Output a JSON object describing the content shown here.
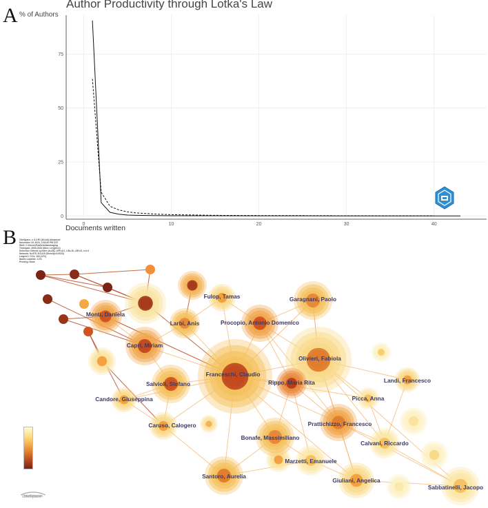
{
  "panel_a_label": "A",
  "panel_b_label": "B",
  "chart_data": {
    "type": "line",
    "title": "Author Productivity through Lotka's Law",
    "ylabel": "% of Authors",
    "xlabel": "Documents written",
    "xlim": [
      -2,
      46
    ],
    "ylim": [
      -1.5,
      93
    ],
    "x_ticks": [
      0,
      10,
      20,
      30,
      40
    ],
    "y_ticks": [
      0,
      25,
      50,
      75
    ],
    "x_tick_labels": [
      "0",
      "10",
      "20",
      "30",
      "40"
    ],
    "y_tick_labels": [
      "0",
      "25",
      "50",
      "75"
    ],
    "series": [
      {
        "name": "observed",
        "style": "solid",
        "x": [
          1,
          2,
          3,
          4,
          5,
          6,
          8,
          10,
          15,
          20,
          25,
          30,
          35,
          40,
          43
        ],
        "values": [
          90.5,
          6.2,
          1.7,
          0.8,
          0.4,
          0.3,
          0.2,
          0.1,
          0.1,
          0.05,
          0.05,
          0.03,
          0.03,
          0.03,
          0.03
        ]
      },
      {
        "name": "theoretical",
        "style": "dashed",
        "x": [
          1,
          2,
          3,
          4,
          5,
          6,
          8,
          10,
          15,
          20,
          25,
          30,
          35,
          40
        ],
        "values": [
          63.5,
          11.0,
          4.5,
          2.8,
          1.9,
          1.4,
          0.9,
          0.6,
          0.3,
          0.2,
          0.15,
          0.1,
          0.08,
          0.06
        ]
      }
    ]
  },
  "network": {
    "meta_lines": [
      "CiteSpace, v. 6.2.R1 (64-bit) Advanced",
      "November 19, 2024, 2:52:50 PM CST",
      "WoS: C:\\Users\\Public\\Inflammaging",
      "Timespan: 2005-2024 (Slice Length=1)",
      "Selection Criteria: g-index (k=25), LRF=3.0, L/N=10, LBY=5, e=1.0",
      "Network: N=975, E=1115 (Density=0.0023)",
      "Largest 1 CCs: 118 (12%)",
      "Nodes Labeled: 1.0%",
      "Pruning: None"
    ],
    "logo_text": "CiteSpace",
    "authors": [
      {
        "name": "Franceschi, Claudio",
        "size": "xl",
        "ring": "#f5c15e"
      },
      {
        "name": "Olivieri, Fabiola",
        "size": "lg",
        "ring": "#f9d98a"
      },
      {
        "name": "Garagnani, Paolo",
        "size": "md",
        "ring": "#f5c15e"
      },
      {
        "name": "Procopio, Antonio Domenico",
        "size": "md",
        "ring": "#f0a64c"
      },
      {
        "name": "Fulop, Tamas",
        "size": "sm",
        "ring": "#f9d98a"
      },
      {
        "name": "Monti, Daniela",
        "size": "md",
        "ring": "#f0a64c"
      },
      {
        "name": "Larbi, Anis",
        "size": "sm",
        "ring": "#f5c15e"
      },
      {
        "name": "Capri, Miriam",
        "size": "md",
        "ring": "#f0a64c"
      },
      {
        "name": "Salvioli, Stefano",
        "size": "md",
        "ring": "#f5c15e"
      },
      {
        "name": "Candore, Giuseppina",
        "size": "sm",
        "ring": "#f9d98a"
      },
      {
        "name": "Caruso, Calogero",
        "size": "sm",
        "ring": "#f9d98a"
      },
      {
        "name": "Rippo, Maria Rita",
        "size": "sm",
        "ring": "#e8883a"
      },
      {
        "name": "Picca, Anna",
        "size": "sm",
        "ring": "#fbe6a6"
      },
      {
        "name": "Landi, Francesco",
        "size": "sm",
        "ring": "#f9d98a"
      },
      {
        "name": "Prattichizzo, Francesco",
        "size": "md",
        "ring": "#f0a64c"
      },
      {
        "name": "Bonafe, Massimiliano",
        "size": "md",
        "ring": "#f5c15e"
      },
      {
        "name": "Calvani, Riccardo",
        "size": "sm",
        "ring": "#fbe6a6"
      },
      {
        "name": "Marzetti, Emanuele",
        "size": "sm",
        "ring": "#fbe6a6"
      },
      {
        "name": "Santoro, Aurelia",
        "size": "md",
        "ring": "#f5c15e"
      },
      {
        "name": "Giuliani, Angelica",
        "size": "md",
        "ring": "#f9d98a"
      },
      {
        "name": "Sabbatinelli, Jacopo",
        "size": "md",
        "ring": "#fbe6a6"
      }
    ],
    "legend_colors": [
      "#fff8d8",
      "#fde18a",
      "#f7b24e",
      "#e07d2e",
      "#b24a22",
      "#7a2416"
    ]
  }
}
